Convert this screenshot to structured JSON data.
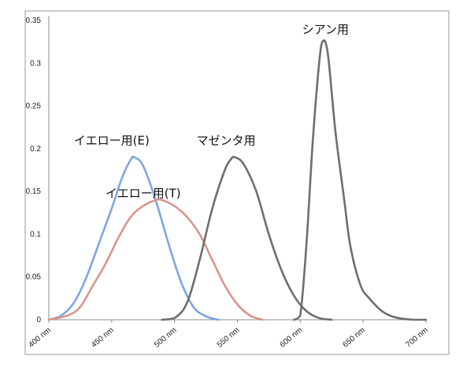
{
  "chart_data": {
    "type": "line",
    "title": "",
    "xlabel": "",
    "ylabel": "",
    "xlim": [
      400,
      700
    ],
    "ylim": [
      0,
      0.35
    ],
    "grid": false,
    "legend": "inline labels",
    "x_ticks": [
      {
        "value": 400,
        "label": "400 nm"
      },
      {
        "value": 450,
        "label": "450 nm"
      },
      {
        "value": 500,
        "label": "500 nm"
      },
      {
        "value": 550,
        "label": "550 nm"
      },
      {
        "value": 600,
        "label": "600 nm"
      },
      {
        "value": 650,
        "label": "650 nm"
      },
      {
        "value": 700,
        "label": "700 nm"
      }
    ],
    "y_ticks": [
      {
        "value": 0,
        "label": "0"
      },
      {
        "value": 0.05,
        "label": "0.05"
      },
      {
        "value": 0.1,
        "label": "0.1"
      },
      {
        "value": 0.15,
        "label": "0.15"
      },
      {
        "value": 0.2,
        "label": "0.2"
      },
      {
        "value": 0.25,
        "label": "0.25"
      },
      {
        "value": 0.3,
        "label": "0.3"
      },
      {
        "value": 0.35,
        "label": "0.35"
      }
    ],
    "series": [
      {
        "name": "イエロー用(E)",
        "color": "#7ea6e0",
        "points": [
          [
            400,
            0
          ],
          [
            410,
            0.005
          ],
          [
            420,
            0.02
          ],
          [
            430,
            0.05
          ],
          [
            440,
            0.09
          ],
          [
            450,
            0.13
          ],
          [
            458,
            0.165
          ],
          [
            465,
            0.187
          ],
          [
            468,
            0.19
          ],
          [
            475,
            0.18
          ],
          [
            485,
            0.14
          ],
          [
            495,
            0.09
          ],
          [
            505,
            0.045
          ],
          [
            515,
            0.015
          ],
          [
            525,
            0.004
          ],
          [
            535,
            0
          ]
        ]
      },
      {
        "name": "イエロー用(T)",
        "color": "#d9958c",
        "points": [
          [
            400,
            0
          ],
          [
            415,
            0.005
          ],
          [
            425,
            0.015
          ],
          [
            435,
            0.04
          ],
          [
            445,
            0.065
          ],
          [
            455,
            0.095
          ],
          [
            465,
            0.12
          ],
          [
            475,
            0.133
          ],
          [
            485,
            0.14
          ],
          [
            490,
            0.14
          ],
          [
            500,
            0.133
          ],
          [
            510,
            0.12
          ],
          [
            520,
            0.1
          ],
          [
            530,
            0.07
          ],
          [
            540,
            0.04
          ],
          [
            550,
            0.018
          ],
          [
            560,
            0.005
          ],
          [
            570,
            0
          ]
        ]
      },
      {
        "name": "マゼンタ用",
        "color": "#6e6e6e",
        "points": [
          [
            490,
            0
          ],
          [
            500,
            0.002
          ],
          [
            510,
            0.02
          ],
          [
            520,
            0.07
          ],
          [
            530,
            0.13
          ],
          [
            540,
            0.175
          ],
          [
            545,
            0.188
          ],
          [
            548,
            0.19
          ],
          [
            555,
            0.182
          ],
          [
            565,
            0.15
          ],
          [
            575,
            0.1
          ],
          [
            585,
            0.058
          ],
          [
            595,
            0.028
          ],
          [
            605,
            0.01
          ],
          [
            615,
            0.002
          ],
          [
            625,
            0
          ]
        ]
      },
      {
        "name": "シアン用",
        "color": "#6e6e6e",
        "points": [
          [
            595,
            0
          ],
          [
            600,
            0.005
          ],
          [
            605,
            0.09
          ],
          [
            610,
            0.21
          ],
          [
            615,
            0.3
          ],
          [
            618,
            0.326
          ],
          [
            622,
            0.31
          ],
          [
            628,
            0.22
          ],
          [
            635,
            0.14
          ],
          [
            640,
            0.085
          ],
          [
            648,
            0.04
          ],
          [
            655,
            0.025
          ],
          [
            665,
            0.01
          ],
          [
            675,
            0.003
          ],
          [
            690,
            0
          ],
          [
            700,
            0
          ]
        ]
      }
    ],
    "labels": [
      {
        "text": "イエロー用(E)",
        "at": [
          450,
          0.205
        ]
      },
      {
        "text": "イエロー用(T)",
        "at": [
          475,
          0.143
        ]
      },
      {
        "text": "マゼンタ用",
        "at": [
          541,
          0.205
        ]
      },
      {
        "text": "シアン用",
        "at": [
          620,
          0.335
        ]
      }
    ]
  }
}
